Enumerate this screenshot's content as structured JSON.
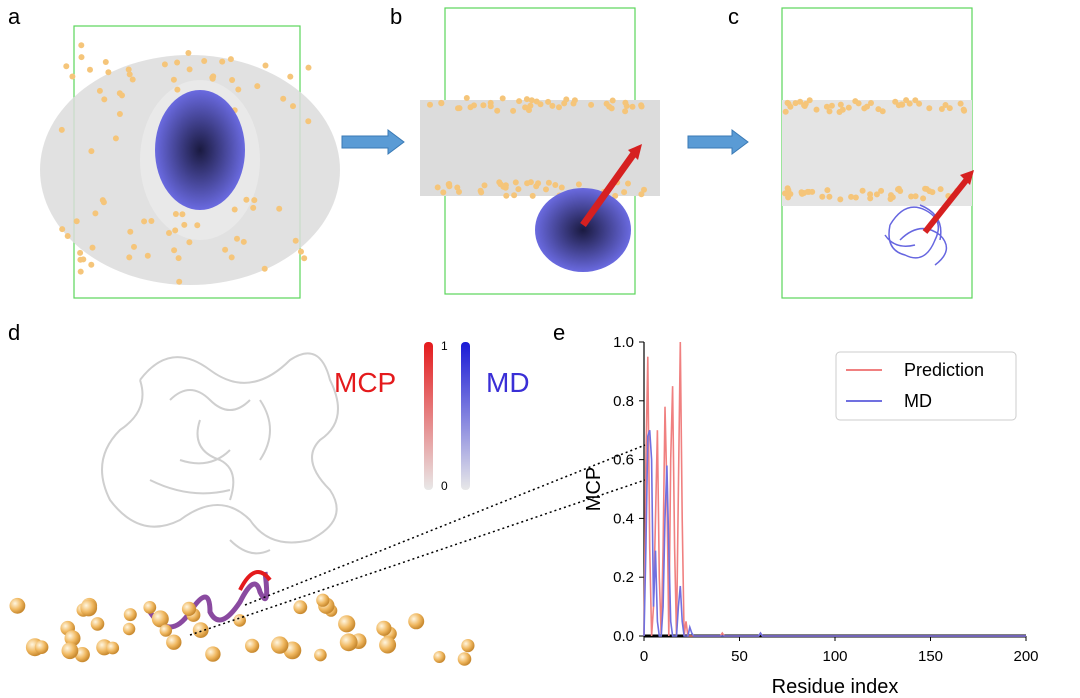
{
  "panels": {
    "a": "a",
    "b": "b",
    "c": "c",
    "d": "d",
    "e": "e"
  },
  "panel_d": {
    "mcp_label": "MCP",
    "md_label": "MD",
    "colorbar_max": "1",
    "colorbar_min": "0",
    "mcp_color": "#e41a1c",
    "md_color": "#3a2fd6"
  },
  "colors": {
    "box": "#5bd65b",
    "lipid": "#d8d8d8",
    "headgroup": "#f5c57a",
    "protein": "#5a5ad6",
    "arrow": "#5a9bd5",
    "vector": "#d62020"
  },
  "chart_data": {
    "type": "line",
    "xlabel": "Residue index",
    "ylabel": "MCP",
    "xlim": [
      0,
      200
    ],
    "ylim": [
      0,
      1.0
    ],
    "xticks": [
      "0",
      "50",
      "100",
      "150",
      "200"
    ],
    "yticks": [
      "0.0",
      "0.2",
      "0.4",
      "0.6",
      "0.8",
      "1.0"
    ],
    "legend_position": "top-right",
    "series": [
      {
        "name": "Prediction",
        "color": "#f08080",
        "x": [
          0,
          1,
          2,
          3,
          4,
          5,
          6,
          7,
          8,
          9,
          10,
          11,
          12,
          13,
          14,
          15,
          16,
          17,
          18,
          19,
          20,
          21,
          22,
          23,
          24,
          25,
          40,
          41,
          42,
          43,
          44,
          60,
          61,
          62,
          200
        ],
        "y": [
          0.0,
          0.6,
          0.95,
          0.3,
          0.0,
          0.1,
          0.4,
          0.7,
          0.2,
          0.0,
          0.3,
          0.78,
          0.5,
          0.0,
          0.6,
          0.85,
          0.3,
          0.0,
          0.5,
          1.0,
          0.4,
          0.0,
          0.05,
          0.0,
          0.0,
          0.0,
          0.0,
          0.01,
          0.0,
          0.0,
          0.0,
          0.0,
          0.01,
          0.0,
          0.0
        ]
      },
      {
        "name": "MD",
        "color": "#7070e0",
        "x": [
          0,
          1,
          2,
          3,
          4,
          5,
          6,
          7,
          8,
          9,
          10,
          11,
          12,
          13,
          14,
          15,
          16,
          17,
          18,
          19,
          20,
          21,
          22,
          23,
          24,
          25,
          26,
          30,
          60,
          61,
          62,
          200
        ],
        "y": [
          0.0,
          0.3,
          0.68,
          0.7,
          0.6,
          0.1,
          0.29,
          0.05,
          0.0,
          0.0,
          0.1,
          0.4,
          0.58,
          0.3,
          0.05,
          0.0,
          0.0,
          0.0,
          0.1,
          0.17,
          0.05,
          0.0,
          0.0,
          0.0,
          0.03,
          0.01,
          0.0,
          0.0,
          0.0,
          0.01,
          0.0,
          0.0
        ]
      }
    ]
  }
}
